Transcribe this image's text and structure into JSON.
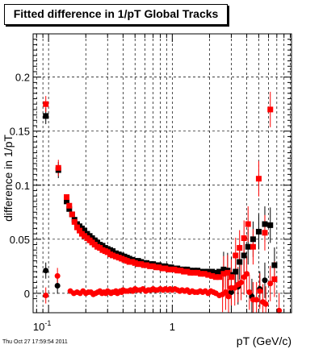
{
  "title": "Fitted difference in 1/pT  Global Tracks",
  "timestamp": "Thu Oct 27 17:59:54 2011",
  "colors": {
    "black_series": "#000000",
    "red_series": "#ff0000",
    "grid": "#000000"
  },
  "chart_data": {
    "type": "scatter",
    "title": "Fitted difference in 1/pT  Global Tracks",
    "xlabel": "pT (GeV/c)",
    "ylabel": "difference in 1/pT",
    "xscale": "log",
    "xlim": [
      0.075,
      9.2
    ],
    "ylim": [
      -0.018,
      0.24
    ],
    "grid": true,
    "xtick_labels": [
      {
        "x": 0.1,
        "label": "10^{-1}"
      },
      {
        "x": 1,
        "label": "1"
      }
    ],
    "ytick_labels": [
      {
        "y": 0,
        "label": "0"
      },
      {
        "y": 0.05,
        "label": "0.05"
      },
      {
        "y": 0.1,
        "label": "0.1"
      },
      {
        "y": 0.15,
        "label": "0.15"
      },
      {
        "y": 0.2,
        "label": "0.2"
      }
    ],
    "series": [
      {
        "marker": "square",
        "color": "#000000",
        "x": [
          0.095,
          0.12,
          0.14,
          0.147,
          0.155,
          0.162,
          0.17,
          0.178,
          0.186,
          0.195,
          0.205,
          0.215,
          0.225,
          0.236,
          0.248,
          0.26,
          0.273,
          0.287,
          0.3,
          0.315,
          0.33,
          0.35,
          0.37,
          0.39,
          0.41,
          0.43,
          0.45,
          0.475,
          0.5,
          0.53,
          0.56,
          0.59,
          0.62,
          0.66,
          0.7,
          0.74,
          0.78,
          0.83,
          0.88,
          0.93,
          0.98,
          1.04,
          1.1,
          1.17,
          1.24,
          1.32,
          1.4,
          1.5,
          1.6,
          1.7,
          1.82,
          1.95,
          2.1,
          2.25,
          2.4,
          2.6,
          2.8,
          3.0,
          3.25,
          3.5,
          3.8,
          4.1,
          4.5,
          5.0,
          5.6,
          6.2,
          6.7
        ],
        "y": [
          0.164,
          0.114,
          0.085,
          0.078,
          0.073,
          0.068,
          0.064,
          0.062,
          0.06,
          0.058,
          0.055,
          0.053,
          0.051,
          0.049,
          0.047,
          0.045,
          0.044,
          0.042,
          0.041,
          0.04,
          0.039,
          0.037,
          0.036,
          0.035,
          0.034,
          0.033,
          0.032,
          0.031,
          0.03,
          0.03,
          0.029,
          0.028,
          0.028,
          0.027,
          0.027,
          0.026,
          0.026,
          0.025,
          0.025,
          0.024,
          0.024,
          0.023,
          0.023,
          0.022,
          0.022,
          0.022,
          0.021,
          0.021,
          0.021,
          0.02,
          0.02,
          0.02,
          0.02,
          0.019,
          0.02,
          0.022,
          0.021,
          0.017,
          0.02,
          0.029,
          0.035,
          0.043,
          0.05,
          0.057,
          0.064,
          0.063,
          0.026
        ]
      },
      {
        "marker": "circle",
        "color": "#000000",
        "x": [
          0.095,
          0.118,
          3.0,
          3.4,
          4.4,
          5.1,
          5.6
        ],
        "y": [
          0.021,
          0.007,
          0.001,
          0.006,
          -0.003,
          0.004,
          0.012
        ]
      },
      {
        "marker": "square",
        "color": "#ff0000",
        "x": [
          0.095,
          0.12,
          0.14,
          0.147,
          0.155,
          0.162,
          0.17,
          0.178,
          0.186,
          0.195,
          0.205,
          0.215,
          0.225,
          0.236,
          0.248,
          0.26,
          0.273,
          0.287,
          0.3,
          0.315,
          0.33,
          0.35,
          0.37,
          0.39,
          0.41,
          0.43,
          0.45,
          0.475,
          0.5,
          0.53,
          0.56,
          0.59,
          0.62,
          0.66,
          0.7,
          0.74,
          0.78,
          0.83,
          0.88,
          0.93,
          0.98,
          1.04,
          1.1,
          1.17,
          1.24,
          1.32,
          1.4,
          1.5,
          1.6,
          1.7,
          1.82,
          1.95,
          2.1,
          2.25,
          2.4,
          2.6,
          2.8,
          3.0,
          3.25,
          3.5,
          3.8,
          4.1,
          4.5,
          5.0,
          5.6,
          6.2,
          6.7
        ],
        "y": [
          0.175,
          0.116,
          0.089,
          0.081,
          0.073,
          0.066,
          0.061,
          0.058,
          0.055,
          0.053,
          0.051,
          0.049,
          0.047,
          0.045,
          0.043,
          0.042,
          0.04,
          0.039,
          0.038,
          0.036,
          0.035,
          0.034,
          0.033,
          0.032,
          0.031,
          0.03,
          0.029,
          0.029,
          0.028,
          0.027,
          0.027,
          0.026,
          0.026,
          0.025,
          0.025,
          0.024,
          0.024,
          0.023,
          0.023,
          0.022,
          0.022,
          0.022,
          0.021,
          0.021,
          0.02,
          0.02,
          0.019,
          0.019,
          0.019,
          0.018,
          0.018,
          0.017,
          0.016,
          0.015,
          0.015,
          0.018,
          0.019,
          0.015,
          0.035,
          0.042,
          0.051,
          0.064,
          0.043,
          0.106,
          0.056,
          0.17,
          0.013
        ]
      },
      {
        "marker": "circle",
        "color": "#ff0000",
        "x": [
          0.095,
          0.118,
          0.15,
          0.16,
          0.17,
          0.18,
          0.19,
          0.2,
          0.21,
          0.22,
          0.23,
          0.24,
          0.25,
          0.26,
          0.27,
          0.28,
          0.29,
          0.3,
          0.31,
          0.32,
          0.33,
          0.34,
          0.35,
          0.36,
          0.37,
          0.38,
          0.39,
          0.4,
          0.42,
          0.44,
          0.46,
          0.48,
          0.5,
          0.52,
          0.55,
          0.58,
          0.61,
          0.64,
          0.67,
          0.7,
          0.73,
          0.76,
          0.8,
          0.84,
          0.88,
          0.92,
          0.96,
          1.0,
          1.05,
          1.1,
          1.15,
          1.2,
          1.26,
          1.32,
          1.38,
          1.45,
          1.52,
          1.6,
          1.68,
          1.76,
          1.85,
          1.95,
          2.05,
          2.15,
          2.25,
          2.4,
          2.55,
          2.7,
          2.85,
          3.0,
          3.2,
          3.4,
          3.6,
          3.8,
          4.0,
          4.2,
          4.5,
          4.8,
          5.1,
          5.4,
          5.7,
          6.2,
          7.3
        ],
        "y": [
          -0.002,
          0.016,
          0.002,
          0.0,
          0.001,
          0.0,
          0.002,
          0.0,
          0.001,
          0.001,
          -0.001,
          0.0,
          0.001,
          0.002,
          0.0,
          0.001,
          0.0,
          0.002,
          0.001,
          0.0,
          0.001,
          0.001,
          0.002,
          0.0,
          0.001,
          0.002,
          0.001,
          0.003,
          0.002,
          0.002,
          0.003,
          0.002,
          0.004,
          0.003,
          0.003,
          0.004,
          0.002,
          0.003,
          0.003,
          0.004,
          0.003,
          0.003,
          0.004,
          0.003,
          0.004,
          0.003,
          0.004,
          0.003,
          0.004,
          0.003,
          0.002,
          0.003,
          0.002,
          0.003,
          0.001,
          0.002,
          0.001,
          0.001,
          0.002,
          0.001,
          0.002,
          0.0,
          0.002,
          0.001,
          0.0,
          -0.002,
          -0.001,
          0.001,
          -0.003,
          0.005,
          0.005,
          0.008,
          0.01,
          0.015,
          0.018,
          0.001,
          -0.006,
          -0.006,
          0.002,
          -0.008,
          -0.01,
          0.009,
          -0.016
        ]
      }
    ]
  }
}
